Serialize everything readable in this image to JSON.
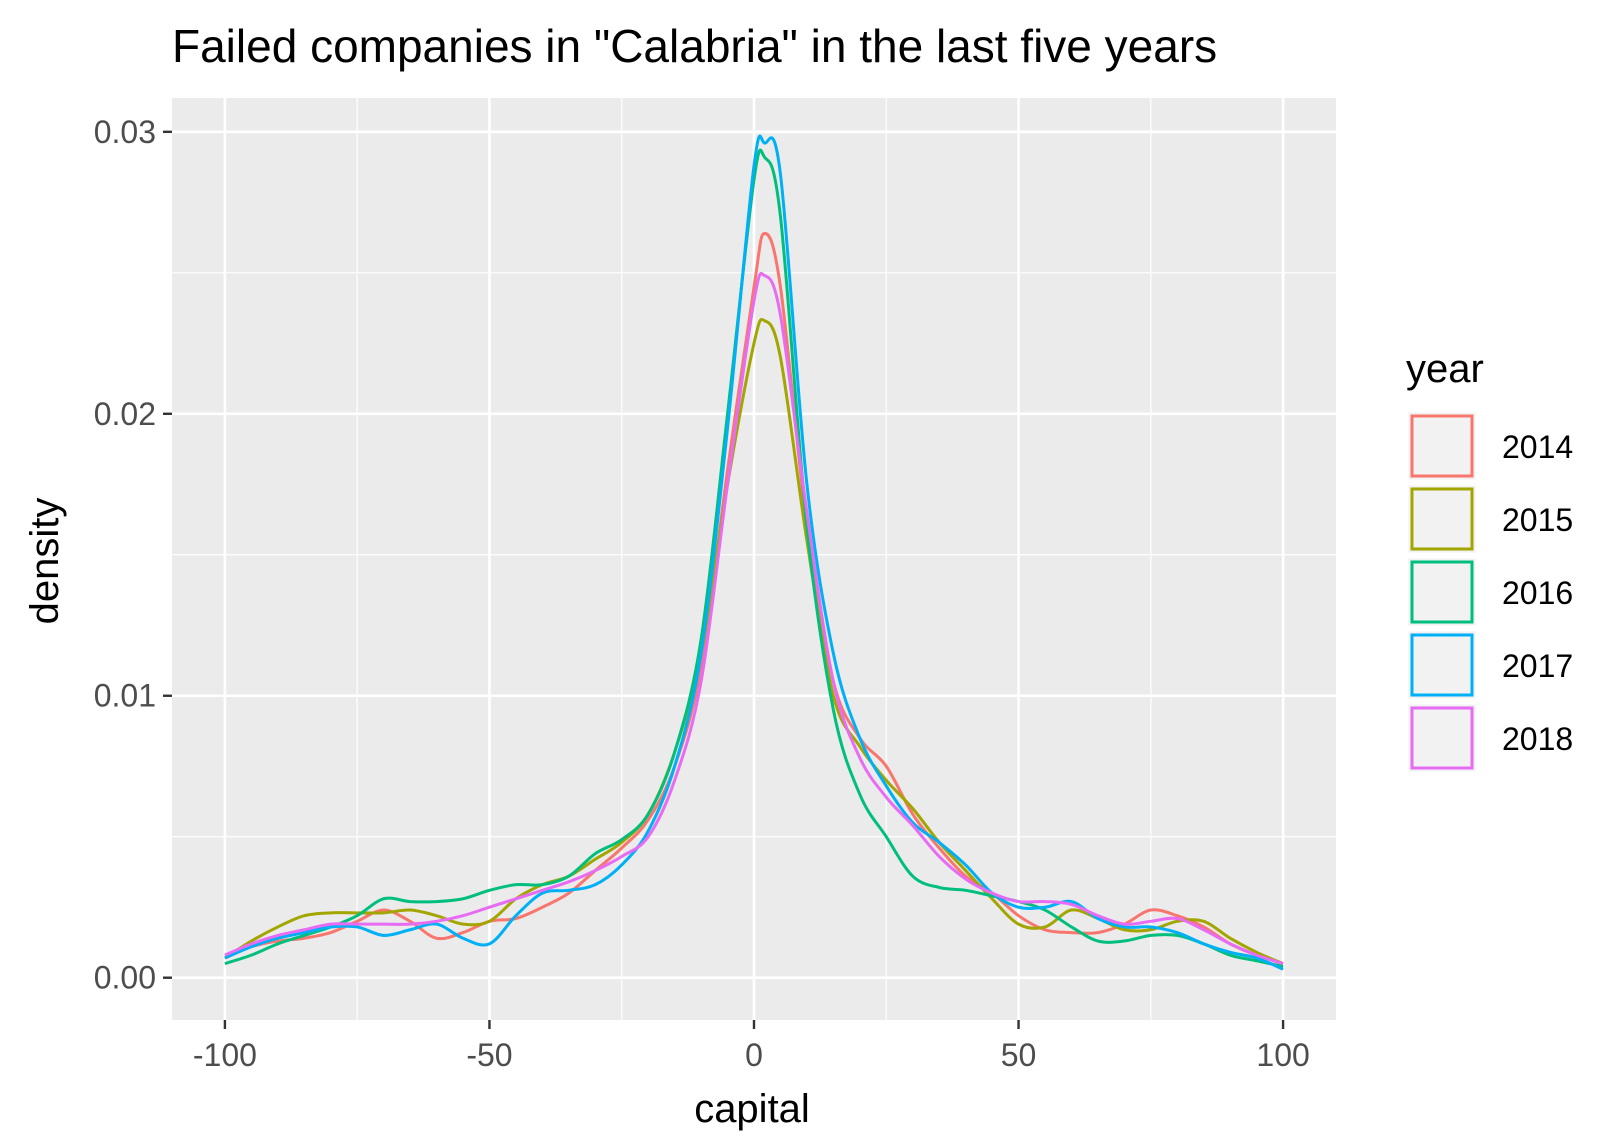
{
  "chart_data": {
    "type": "line",
    "title": "Failed companies in \"Calabria\" in the last five years",
    "xlabel": "capital",
    "ylabel": "density",
    "xlim": [
      -110,
      110
    ],
    "ylim": [
      -0.0015,
      0.0312
    ],
    "x_ticks": [
      -100,
      -50,
      0,
      50,
      100
    ],
    "x_tick_labels": [
      "-100",
      "-50",
      "0",
      "50",
      "100"
    ],
    "y_ticks": [
      0,
      0.01,
      0.02,
      0.03
    ],
    "y_tick_labels": [
      "0.00",
      "0.01",
      "0.02",
      "0.03"
    ],
    "grid": true,
    "background": "#ebebeb",
    "legend": {
      "title": "year",
      "position": "right"
    },
    "x": [
      -100,
      -95,
      -90,
      -85,
      -80,
      -75,
      -70,
      -65,
      -60,
      -55,
      -50,
      -45,
      -40,
      -35,
      -30,
      -25,
      -20,
      -15,
      -10,
      -5,
      0,
      2,
      5,
      10,
      15,
      20,
      25,
      30,
      35,
      40,
      45,
      50,
      55,
      60,
      65,
      70,
      75,
      80,
      85,
      90,
      95,
      100
    ],
    "series": [
      {
        "name": "2014",
        "color": "#f8766d",
        "values": [
          0.0007,
          0.0011,
          0.0013,
          0.0014,
          0.0016,
          0.002,
          0.0024,
          0.002,
          0.0014,
          0.0016,
          0.002,
          0.0021,
          0.0025,
          0.003,
          0.0038,
          0.0046,
          0.0056,
          0.0075,
          0.011,
          0.018,
          0.0245,
          0.0264,
          0.0245,
          0.016,
          0.0105,
          0.0085,
          0.0075,
          0.0058,
          0.0046,
          0.0036,
          0.003,
          0.0022,
          0.0017,
          0.0016,
          0.0016,
          0.0019,
          0.0024,
          0.0022,
          0.0018,
          0.0012,
          0.0008,
          0.0005
        ]
      },
      {
        "name": "2015",
        "color": "#a3a500",
        "values": [
          0.0007,
          0.0013,
          0.0018,
          0.0022,
          0.0023,
          0.0023,
          0.0023,
          0.0024,
          0.0022,
          0.0019,
          0.002,
          0.0028,
          0.0033,
          0.0036,
          0.0042,
          0.0048,
          0.0058,
          0.008,
          0.0115,
          0.0175,
          0.0225,
          0.0233,
          0.022,
          0.0155,
          0.01,
          0.0082,
          0.007,
          0.006,
          0.0048,
          0.0038,
          0.0028,
          0.0019,
          0.0018,
          0.0024,
          0.0021,
          0.0017,
          0.0017,
          0.002,
          0.002,
          0.0014,
          0.0009,
          0.0005
        ]
      },
      {
        "name": "2016",
        "color": "#00bf7d",
        "values": [
          0.0005,
          0.0008,
          0.0012,
          0.0015,
          0.0018,
          0.0022,
          0.0028,
          0.0027,
          0.0027,
          0.0028,
          0.0031,
          0.0033,
          0.0033,
          0.0036,
          0.0044,
          0.0049,
          0.0058,
          0.008,
          0.012,
          0.02,
          0.0283,
          0.0291,
          0.027,
          0.016,
          0.0095,
          0.0065,
          0.005,
          0.0036,
          0.0032,
          0.0031,
          0.0029,
          0.0027,
          0.0024,
          0.0018,
          0.0013,
          0.0013,
          0.0015,
          0.0015,
          0.0012,
          0.0008,
          0.0006,
          0.0004
        ]
      },
      {
        "name": "2017",
        "color": "#00b0f6",
        "values": [
          0.0007,
          0.0011,
          0.0014,
          0.0016,
          0.0018,
          0.0018,
          0.0015,
          0.0017,
          0.0019,
          0.0014,
          0.0012,
          0.0022,
          0.003,
          0.0031,
          0.0033,
          0.004,
          0.0052,
          0.0075,
          0.0115,
          0.0195,
          0.0288,
          0.0296,
          0.0285,
          0.0175,
          0.0115,
          0.0085,
          0.0068,
          0.0055,
          0.0048,
          0.004,
          0.003,
          0.0025,
          0.0025,
          0.0027,
          0.0021,
          0.0018,
          0.0018,
          0.0016,
          0.0012,
          0.0009,
          0.0007,
          0.0003
        ]
      },
      {
        "name": "2018",
        "color": "#e76bf3",
        "values": [
          0.0008,
          0.0012,
          0.0015,
          0.0017,
          0.0019,
          0.0019,
          0.0019,
          0.0019,
          0.002,
          0.0022,
          0.0025,
          0.0028,
          0.0031,
          0.0034,
          0.0038,
          0.0043,
          0.005,
          0.007,
          0.0105,
          0.0175,
          0.024,
          0.0249,
          0.0235,
          0.0165,
          0.0105,
          0.0078,
          0.0064,
          0.0054,
          0.0043,
          0.0035,
          0.003,
          0.0027,
          0.0027,
          0.0026,
          0.0022,
          0.0019,
          0.002,
          0.0021,
          0.0017,
          0.0012,
          0.0008,
          0.0005
        ]
      }
    ]
  }
}
